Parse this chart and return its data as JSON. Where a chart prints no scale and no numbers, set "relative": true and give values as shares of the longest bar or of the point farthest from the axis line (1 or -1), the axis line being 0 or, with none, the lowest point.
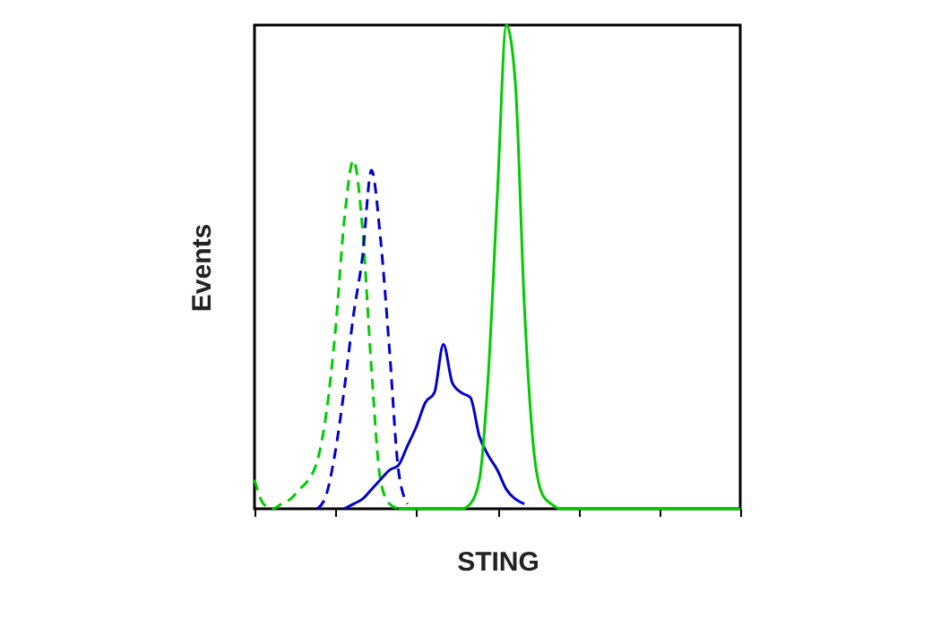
{
  "chart_data": {
    "type": "line",
    "xlabel": "STING",
    "ylabel": "Events",
    "relative": true,
    "grid": false,
    "categories": [
      null,
      null,
      null,
      null,
      null,
      null,
      null,
      null,
      null,
      null,
      null,
      null,
      null,
      null,
      null,
      null,
      null,
      null,
      null,
      null,
      null,
      null,
      null,
      null,
      null,
      null,
      null,
      null,
      null,
      null,
      null,
      null,
      null,
      null,
      null,
      null,
      null,
      null,
      null,
      null,
      null,
      null,
      null,
      null,
      null,
      null,
      null,
      null,
      null,
      null,
      null,
      null,
      null,
      null,
      null
    ],
    "series": [
      {
        "color": "#00cc00",
        "line_style": "dashed",
        "values": [
          0.06,
          0.01,
          0,
          0.01,
          0.02,
          0.04,
          0.06,
          0.1,
          0.2,
          0.37,
          0.6,
          0.72,
          0.58,
          0.29,
          0.06,
          0.01,
          0,
          null,
          null,
          null,
          null,
          null,
          null,
          null,
          null,
          null,
          null,
          null,
          null,
          null,
          null,
          null,
          null,
          null,
          null,
          null,
          null,
          null,
          null,
          null,
          null,
          null,
          null,
          null,
          null,
          null,
          null,
          null,
          null,
          null,
          null,
          null,
          null,
          null,
          null
        ]
      },
      {
        "color": "#0000cc",
        "line_style": "dashed",
        "values": [
          null,
          null,
          null,
          null,
          null,
          null,
          null,
          0,
          0.03,
          0.12,
          0.25,
          0.4,
          0.52,
          0.7,
          0.56,
          0.33,
          0.08,
          0.01,
          null,
          null,
          null,
          null,
          null,
          null,
          null,
          null,
          null,
          null,
          null,
          null,
          null,
          null,
          null,
          null,
          null,
          null,
          null,
          null,
          null,
          null,
          null,
          null,
          null,
          null,
          null,
          null,
          null,
          null,
          null,
          null,
          null,
          null,
          null,
          null,
          null
        ]
      },
      {
        "color": "#0000cc",
        "line_style": "solid",
        "values": [
          null,
          null,
          null,
          null,
          null,
          null,
          null,
          null,
          null,
          null,
          0,
          0.01,
          0.02,
          0.04,
          0.06,
          0.08,
          0.09,
          0.13,
          0.17,
          0.22,
          0.24,
          0.34,
          0.26,
          0.24,
          0.23,
          0.15,
          0.11,
          0.08,
          0.04,
          0.02,
          0.01,
          null,
          null,
          null,
          null,
          null,
          null,
          null,
          null,
          null,
          null,
          null,
          null,
          null,
          null,
          null,
          null,
          null,
          null,
          null,
          null,
          null,
          null,
          null,
          null
        ]
      },
      {
        "color": "#00cc00",
        "line_style": "solid",
        "values": [
          null,
          null,
          null,
          null,
          null,
          null,
          null,
          null,
          null,
          null,
          null,
          null,
          null,
          null,
          null,
          null,
          0,
          0,
          0,
          0,
          0,
          0,
          0,
          0,
          0.01,
          0.06,
          0.28,
          0.65,
          1,
          0.88,
          0.42,
          0.13,
          0.03,
          0.01,
          0,
          0,
          0,
          0,
          0,
          0,
          0,
          0,
          0,
          0,
          0,
          0,
          0,
          0,
          0,
          0,
          0,
          0,
          0,
          0,
          0
        ]
      }
    ]
  }
}
